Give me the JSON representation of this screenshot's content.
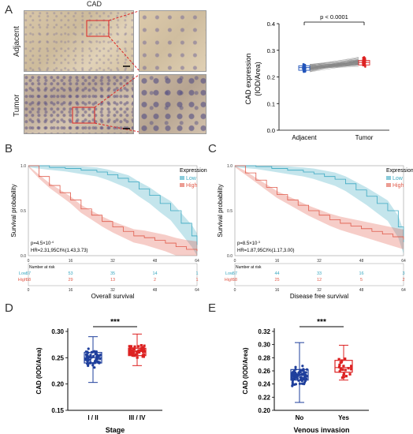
{
  "panels": {
    "a": "A",
    "b": "B",
    "c": "C",
    "d": "D",
    "e": "E"
  },
  "panel_a": {
    "column_title": "CAD",
    "row_labels": [
      "Adjacent",
      "Tumor"
    ]
  },
  "chart_data": [
    {
      "id": "A-paired",
      "type": "scatter",
      "ylabel": "CAD expression (IOD/Area)",
      "ylabel_lines": [
        "CAD expression",
        "(IOD/Area)"
      ],
      "categories": [
        "Adjacent",
        "Tumor"
      ],
      "ylim": [
        0.0,
        0.4
      ],
      "yticks": [
        "0.0",
        "0.1",
        "0.2",
        "0.3",
        "0.4"
      ],
      "annotation": "p < 0.0001",
      "series": [
        {
          "values_summary": {
            "median": 0.235,
            "q1": 0.225,
            "q3": 0.242,
            "min": 0.195,
            "max": 0.295
          },
          "color": "#2255bb"
        },
        {
          "values_summary": {
            "median": 0.255,
            "q1": 0.245,
            "q3": 0.262,
            "min": 0.2,
            "max": 0.305
          },
          "color": "#dd2222"
        }
      ]
    },
    {
      "id": "B-km",
      "type": "line",
      "xlabel": "Overall survival",
      "ylabel": "Survival probability",
      "legend_title": "Expression",
      "legend": [
        "Low",
        "High"
      ],
      "colors": [
        "#3aa8c1",
        "#e05a4a"
      ],
      "stats": [
        "p=4.5×10",
        "-4",
        "HR=2.31,95CI%(1.43,3.73)"
      ],
      "xticks": [
        "0",
        "16",
        "32",
        "48",
        "64"
      ],
      "yticks": [
        "0.0",
        "0.5",
        "1.0"
      ],
      "series": [
        {
          "name": "Low",
          "x": [
            0,
            8,
            14,
            20,
            26,
            30,
            34,
            38,
            42,
            46,
            50,
            54,
            58,
            62,
            64
          ],
          "values": [
            1.0,
            0.98,
            0.97,
            0.95,
            0.93,
            0.9,
            0.86,
            0.82,
            0.74,
            0.67,
            0.58,
            0.5,
            0.36,
            0.22,
            0.12
          ]
        },
        {
          "name": "High",
          "x": [
            0,
            4,
            8,
            12,
            16,
            20,
            24,
            28,
            32,
            36,
            40,
            44,
            48,
            52,
            56,
            60,
            64
          ],
          "values": [
            1.0,
            0.88,
            0.78,
            0.7,
            0.62,
            0.52,
            0.45,
            0.38,
            0.32,
            0.27,
            0.22,
            0.2,
            0.17,
            0.14,
            0.1,
            0.07,
            0.05
          ]
        }
      ],
      "risk_table": {
        "title": "Number at risk",
        "rows": [
          {
            "label": "Low",
            "values": [
              "57",
              "53",
              "35",
              "14",
              "1"
            ]
          },
          {
            "label": "High",
            "values": [
              "58",
              "29",
              "13",
              "2",
              "1"
            ]
          }
        ]
      }
    },
    {
      "id": "C-km",
      "type": "line",
      "xlabel": "Disease free survival",
      "ylabel": "Survival probability",
      "legend_title": "Expression",
      "legend": [
        "Low",
        "High"
      ],
      "colors": [
        "#3aa8c1",
        "#e05a4a"
      ],
      "stats": [
        "p=8.5×10",
        "-3",
        "HR=1.87,95CI%(1.17,3.00)"
      ],
      "xticks": [
        "0",
        "16",
        "32",
        "48",
        "64"
      ],
      "yticks": [
        "0.0",
        "0.5",
        "1.0"
      ],
      "series": [
        {
          "name": "Low",
          "x": [
            0,
            8,
            14,
            20,
            26,
            30,
            34,
            38,
            42,
            46,
            50,
            54,
            58,
            62,
            64
          ],
          "values": [
            1.0,
            0.99,
            0.97,
            0.95,
            0.93,
            0.91,
            0.88,
            0.85,
            0.8,
            0.73,
            0.66,
            0.58,
            0.5,
            0.32,
            0.15
          ]
        },
        {
          "name": "High",
          "x": [
            0,
            4,
            8,
            12,
            16,
            20,
            24,
            28,
            32,
            36,
            40,
            44,
            48,
            52,
            56,
            60,
            64
          ],
          "values": [
            1.0,
            0.92,
            0.84,
            0.76,
            0.68,
            0.62,
            0.56,
            0.5,
            0.45,
            0.4,
            0.36,
            0.33,
            0.3,
            0.27,
            0.24,
            0.21,
            0.18
          ]
        }
      ],
      "risk_table": {
        "title": "Number at risk",
        "rows": [
          {
            "label": "Low",
            "values": [
              "57",
              "44",
              "33",
              "16",
              "3"
            ]
          },
          {
            "label": "High",
            "values": [
              "58",
              "25",
              "12",
              "5",
              "2"
            ]
          }
        ]
      }
    },
    {
      "id": "D-box",
      "type": "scatter",
      "xlabel": "Stage",
      "ylabel": "CAD (IOD/Area)",
      "categories": [
        "I / II",
        "III / IV"
      ],
      "ylim": [
        0.15,
        0.3
      ],
      "yticks": [
        "0.15",
        "0.20",
        "0.25",
        "0.30"
      ],
      "annotation": "***",
      "series": [
        {
          "name": "I / II",
          "color": "#1f3f9c",
          "box": {
            "min": 0.203,
            "q1": 0.24,
            "median": 0.25,
            "q3": 0.26,
            "max": 0.29
          }
        },
        {
          "name": "III / IV",
          "color": "#dd2222",
          "box": {
            "min": 0.235,
            "q1": 0.254,
            "median": 0.262,
            "q3": 0.268,
            "max": 0.295
          }
        }
      ]
    },
    {
      "id": "E-box",
      "type": "scatter",
      "xlabel": "Venous invasion",
      "ylabel": "CAD (IOD/Area)",
      "categories": [
        "No",
        "Yes"
      ],
      "ylim": [
        0.2,
        0.32
      ],
      "yticks": [
        "0.20",
        "0.22",
        "0.24",
        "0.26",
        "0.28",
        "0.30",
        "0.32"
      ],
      "annotation": "***",
      "series": [
        {
          "name": "No",
          "color": "#1f3f9c",
          "box": {
            "min": 0.212,
            "q1": 0.246,
            "median": 0.253,
            "q3": 0.262,
            "max": 0.303
          }
        },
        {
          "name": "Yes",
          "color": "#dd2222",
          "box": {
            "min": 0.246,
            "q1": 0.258,
            "median": 0.265,
            "q3": 0.276,
            "max": 0.299
          }
        }
      ]
    }
  ]
}
